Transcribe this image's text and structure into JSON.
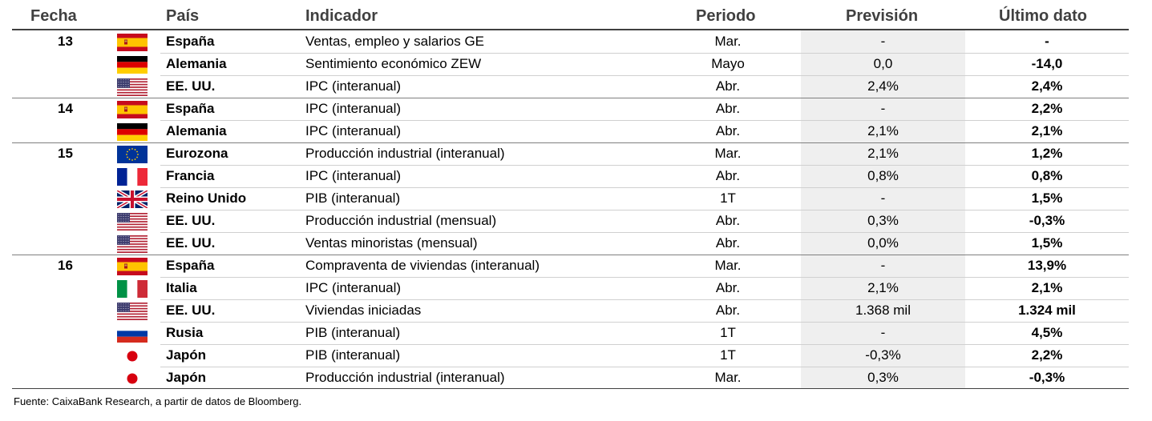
{
  "headers": {
    "fecha": "Fecha",
    "pais": "País",
    "indicador": "Indicador",
    "periodo": "Periodo",
    "prevision": "Previsión",
    "ultimo": "Último dato"
  },
  "rows": [
    {
      "fecha": "13",
      "flag": "spain-flag-icon",
      "pais": "España",
      "indicador": "Ventas, empleo y salarios GE",
      "periodo": "Mar.",
      "prevision": "-",
      "ultimo": "-"
    },
    {
      "fecha": "",
      "flag": "germany-flag-icon",
      "pais": "Alemania",
      "indicador": "Sentimiento económico ZEW",
      "periodo": "Mayo",
      "prevision": "0,0",
      "ultimo": "-14,0"
    },
    {
      "fecha": "",
      "flag": "usa-flag-icon",
      "pais": "EE. UU.",
      "indicador": "IPC (interanual)",
      "periodo": "Abr.",
      "prevision": "2,4%",
      "ultimo": "2,4%"
    },
    {
      "fecha": "14",
      "flag": "spain-flag-icon",
      "pais": "España",
      "indicador": "IPC (interanual)",
      "periodo": "Abr.",
      "prevision": "-",
      "ultimo": "2,2%"
    },
    {
      "fecha": "",
      "flag": "germany-flag-icon",
      "pais": "Alemania",
      "indicador": "IPC (interanual)",
      "periodo": "Abr.",
      "prevision": "2,1%",
      "ultimo": "2,1%"
    },
    {
      "fecha": "15",
      "flag": "eu-flag-icon",
      "pais": "Eurozona",
      "indicador": "Producción industrial (interanual)",
      "periodo": "Mar.",
      "prevision": "2,1%",
      "ultimo": "1,2%"
    },
    {
      "fecha": "",
      "flag": "france-flag-icon",
      "pais": "Francia",
      "indicador": "IPC (interanual)",
      "periodo": "Abr.",
      "prevision": "0,8%",
      "ultimo": "0,8%"
    },
    {
      "fecha": "",
      "flag": "uk-flag-icon",
      "pais": "Reino Unido",
      "indicador": "PIB (interanual)",
      "periodo": "1T",
      "prevision": "-",
      "ultimo": "1,5%"
    },
    {
      "fecha": "",
      "flag": "usa-flag-icon",
      "pais": "EE. UU.",
      "indicador": "Producción industrial (mensual)",
      "periodo": "Abr.",
      "prevision": "0,3%",
      "ultimo": "-0,3%"
    },
    {
      "fecha": "",
      "flag": "usa-flag-icon",
      "pais": "EE. UU.",
      "indicador": "Ventas minoristas (mensual)",
      "periodo": "Abr.",
      "prevision": "0,0%",
      "ultimo": "1,5%"
    },
    {
      "fecha": "16",
      "flag": "spain-flag-icon",
      "pais": "España",
      "indicador": "Compraventa de viviendas (interanual)",
      "periodo": "Mar.",
      "prevision": "-",
      "ultimo": "13,9%"
    },
    {
      "fecha": "",
      "flag": "italy-flag-icon",
      "pais": "Italia",
      "indicador": "IPC (interanual)",
      "periodo": "Abr.",
      "prevision": "2,1%",
      "ultimo": "2,1%"
    },
    {
      "fecha": "",
      "flag": "usa-flag-icon",
      "pais": "EE. UU.",
      "indicador": "Viviendas iniciadas",
      "periodo": "Abr.",
      "prevision": "1.368 mil",
      "ultimo": "1.324 mil"
    },
    {
      "fecha": "",
      "flag": "russia-flag-icon",
      "pais": "Rusia",
      "indicador": "PIB (interanual)",
      "periodo": "1T",
      "prevision": "-",
      "ultimo": "4,5%"
    },
    {
      "fecha": "",
      "flag": "japan-flag-icon",
      "pais": "Japón",
      "indicador": "PIB (interanual)",
      "periodo": "1T",
      "prevision": "-0,3%",
      "ultimo": "2,2%"
    },
    {
      "fecha": "",
      "flag": "japan-flag-icon",
      "pais": "Japón",
      "indicador": "Producción industrial (interanual)",
      "periodo": "Mar.",
      "prevision": "0,3%",
      "ultimo": "-0,3%"
    }
  ],
  "footer": "Fuente: CaixaBank Research, a partir de datos de Bloomberg."
}
